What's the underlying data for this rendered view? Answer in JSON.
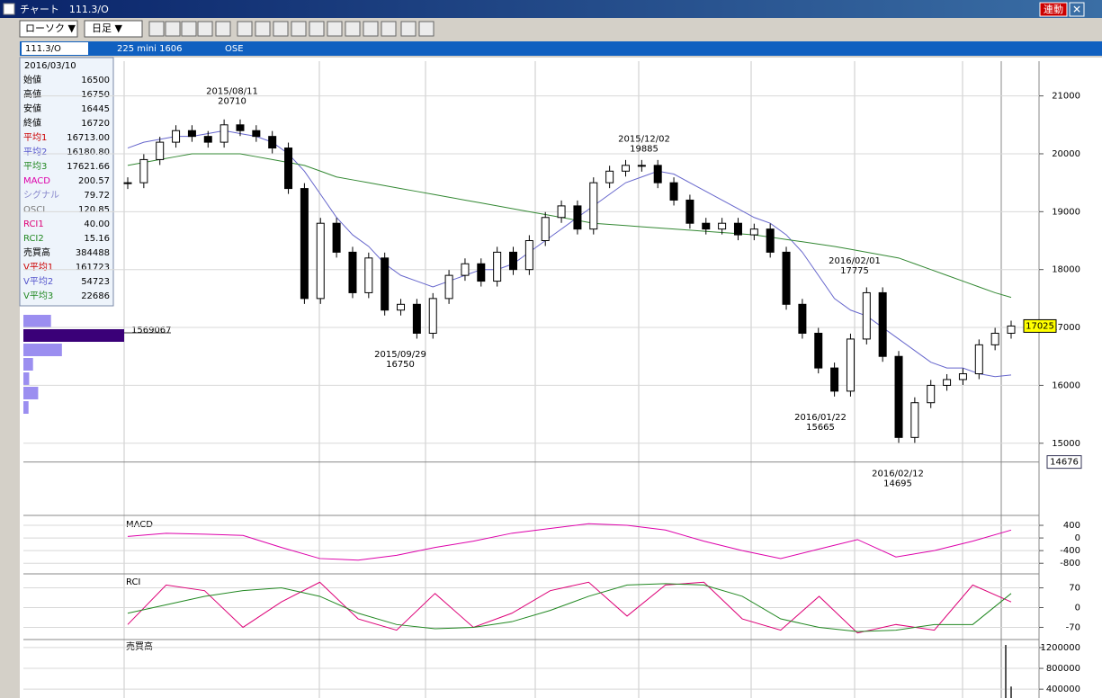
{
  "window": {
    "title": "チャート　111.3/O",
    "link_button": "連動"
  },
  "toolbar": {
    "chart_type": "ローソク ▼",
    "period": "日足 ▼"
  },
  "info_bar": {
    "symbol": "111.3/O",
    "contract": "225 mini 1606",
    "exchange": "OSE"
  },
  "info_box": {
    "date": "2016/03/10",
    "rows": [
      {
        "label": "始値",
        "value": "16500",
        "color": "#000000"
      },
      {
        "label": "高値",
        "value": "16750",
        "color": "#000000"
      },
      {
        "label": "安値",
        "value": "16445",
        "color": "#000000"
      },
      {
        "label": "終値",
        "value": "16720",
        "color": "#000000"
      },
      {
        "label": "平均1",
        "value": "16713.00",
        "color": "#cc0000"
      },
      {
        "label": "平均2",
        "value": "16180.80",
        "color": "#5555cc"
      },
      {
        "label": "平均3",
        "value": "17621.66",
        "color": "#228822"
      },
      {
        "label": "MACD",
        "value": "200.57",
        "color": "#dd00aa"
      },
      {
        "label": "シグナル",
        "value": "79.72",
        "color": "#8888cc"
      },
      {
        "label": "OSCI",
        "value": "120.85",
        "color": "#777777"
      },
      {
        "label": "RCI1",
        "value": "40.00",
        "color": "#dd0077"
      },
      {
        "label": "RCI2",
        "value": "15.16",
        "color": "#228822"
      },
      {
        "label": "売買高",
        "value": "384488",
        "color": "#000000"
      },
      {
        "label": "V平均1",
        "value": "161723",
        "color": "#cc0000"
      },
      {
        "label": "V平均2",
        "value": "54723",
        "color": "#5555cc"
      },
      {
        "label": "V平均3",
        "value": "22686",
        "color": "#228822"
      }
    ]
  },
  "volume_profile": {
    "values": [
      430000,
      1569067,
      600000,
      150000,
      90000,
      230000,
      80000
    ],
    "colors": [
      "#9b8ef0",
      "#3a0078"
    ]
  },
  "chart_data": [
    {
      "type": "candlestick",
      "series": [
        {
          "color": "#000000",
          "values": [
            19500,
            19900,
            20200,
            20400,
            20300,
            20200,
            20500,
            20400,
            20300,
            20100,
            19400,
            17500,
            18800,
            18300,
            17600,
            18200,
            17300,
            17400,
            16900,
            17500,
            17900,
            18100,
            17800,
            18300,
            18000,
            18500,
            18900,
            19100,
            18700,
            19500,
            19700,
            19800,
            19800,
            19500,
            19200,
            18800,
            18700,
            18800,
            18600,
            18700,
            18300,
            17400,
            16900,
            16300,
            15900,
            16800,
            17600,
            16500,
            15100,
            15700,
            16000,
            16100,
            16200,
            16700,
            16900,
            17025
          ]
        },
        {
          "color": "#6666cc",
          "values": [
            20100,
            20200,
            20250,
            20300,
            20300,
            20350,
            20400,
            20350,
            20300,
            20200,
            20000,
            19700,
            19300,
            18900,
            18600,
            18400,
            18100,
            17900,
            17800,
            17700,
            17800,
            17900,
            18000,
            18000,
            18100,
            18300,
            18500,
            18700,
            18900,
            19100,
            19300,
            19500,
            19600,
            19700,
            19650,
            19500,
            19350,
            19200,
            19050,
            18900,
            18800,
            18600,
            18300,
            17900,
            17500,
            17300,
            17200,
            17000,
            16800,
            16600,
            16400,
            16300,
            16300,
            16200,
            16150,
            16180
          ]
        },
        {
          "color": "#338833",
          "values": [
            19800,
            19850,
            19900,
            19950,
            20000,
            20000,
            20000,
            20000,
            19950,
            19900,
            19850,
            19800,
            19700,
            19600,
            19550,
            19500,
            19450,
            19400,
            19350,
            19300,
            19250,
            19200,
            19150,
            19100,
            19050,
            19000,
            18950,
            18900,
            18850,
            18800,
            18780,
            18760,
            18740,
            18720,
            18700,
            18680,
            18660,
            18640,
            18620,
            18600,
            18560,
            18520,
            18480,
            18440,
            18400,
            18350,
            18300,
            18250,
            18200,
            18100,
            18000,
            17900,
            17800,
            17700,
            17600,
            17520
          ]
        }
      ],
      "ylim": [
        13800,
        21600
      ],
      "yticks": [
        21000,
        20000,
        19000,
        18000,
        17000,
        16000,
        15000
      ],
      "cursor_value": 14676,
      "annotations": [
        {
          "date": "2015/08/11",
          "value": 20710
        },
        {
          "date": "2015/09/29",
          "value": 16750
        },
        {
          "date": "2015/12/02",
          "value": 19885
        },
        {
          "date": "2016/02/01",
          "value": 17775
        },
        {
          "date": "2016/01/22",
          "value": 15665
        },
        {
          "date": "2016/02/12",
          "value": 14695
        }
      ]
    },
    {
      "type": "line",
      "title": "MACD",
      "ylim": [
        -1050,
        600
      ],
      "yticks": [
        400,
        0,
        -400,
        -800
      ],
      "series": [
        {
          "color": "#dd00aa",
          "values": [
            50,
            150,
            120,
            80,
            -300,
            -650,
            -700,
            -550,
            -300,
            -100,
            150,
            300,
            450,
            400,
            250,
            -100,
            -400,
            -650,
            -350,
            -50,
            -600,
            -400,
            -100,
            250
          ]
        }
      ]
    },
    {
      "type": "line",
      "title": "RCI",
      "ylim": [
        -110,
        110
      ],
      "yticks": [
        70,
        0,
        -70
      ],
      "series": [
        {
          "color": "#dd0077",
          "values": [
            -60,
            80,
            60,
            -70,
            20,
            90,
            -40,
            -80,
            50,
            -70,
            -20,
            60,
            90,
            -30,
            80,
            90,
            -40,
            -80,
            40,
            -90,
            -60,
            -80,
            80,
            20
          ]
        },
        {
          "color": "#228822",
          "values": [
            -20,
            10,
            40,
            60,
            70,
            40,
            -20,
            -60,
            -75,
            -70,
            -50,
            -10,
            40,
            80,
            85,
            80,
            40,
            -40,
            -70,
            -85,
            -80,
            -60,
            -60,
            50
          ]
        }
      ]
    },
    {
      "type": "bar",
      "title": "売買高",
      "ylim": [
        230000,
        1320000
      ],
      "yticks": [
        {
          "value": 1200000,
          "label": "1200000"
        },
        {
          "value": 800000,
          "label": "800000"
        },
        {
          "value": 400000,
          "label": "400000"
        }
      ],
      "color": "#555555",
      "values": [
        1250000,
        450000
      ]
    }
  ]
}
